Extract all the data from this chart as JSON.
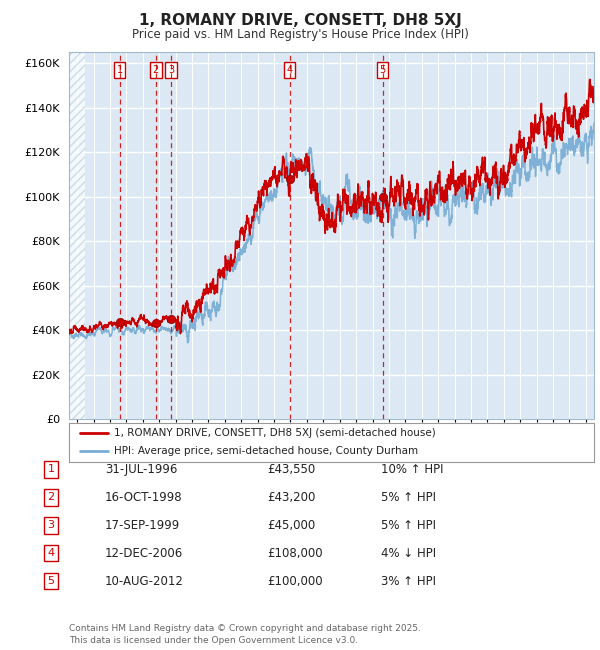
{
  "title": "1, ROMANY DRIVE, CONSETT, DH8 5XJ",
  "subtitle": "Price paid vs. HM Land Registry's House Price Index (HPI)",
  "bg_color": "#dce9f5",
  "hatch_color": "#b8cfe0",
  "red_line_color": "#cc0000",
  "blue_line_color": "#7aadd4",
  "dashed_line_color": "#cc0000",
  "ylim": [
    0,
    165000
  ],
  "yticks": [
    0,
    20000,
    40000,
    60000,
    80000,
    100000,
    120000,
    140000,
    160000
  ],
  "sale_dates_x": [
    1996.58,
    1998.79,
    1999.71,
    2006.95,
    2012.61
  ],
  "sale_prices": [
    43550,
    43200,
    45000,
    108000,
    100000
  ],
  "sale_labels": [
    "1",
    "2",
    "3",
    "4",
    "5"
  ],
  "legend_red": "1, ROMANY DRIVE, CONSETT, DH8 5XJ (semi-detached house)",
  "legend_blue": "HPI: Average price, semi-detached house, County Durham",
  "table_rows": [
    [
      "1",
      "31-JUL-1996",
      "£43,550",
      "10% ↑ HPI"
    ],
    [
      "2",
      "16-OCT-1998",
      "£43,200",
      "5% ↑ HPI"
    ],
    [
      "3",
      "17-SEP-1999",
      "£45,000",
      "5% ↑ HPI"
    ],
    [
      "4",
      "12-DEC-2006",
      "£108,000",
      "4% ↓ HPI"
    ],
    [
      "5",
      "10-AUG-2012",
      "£100,000",
      "3% ↑ HPI"
    ]
  ],
  "footnote": "Contains HM Land Registry data © Crown copyright and database right 2025.\nThis data is licensed under the Open Government Licence v3.0.",
  "xmin": 1993.5,
  "xmax": 2025.5
}
